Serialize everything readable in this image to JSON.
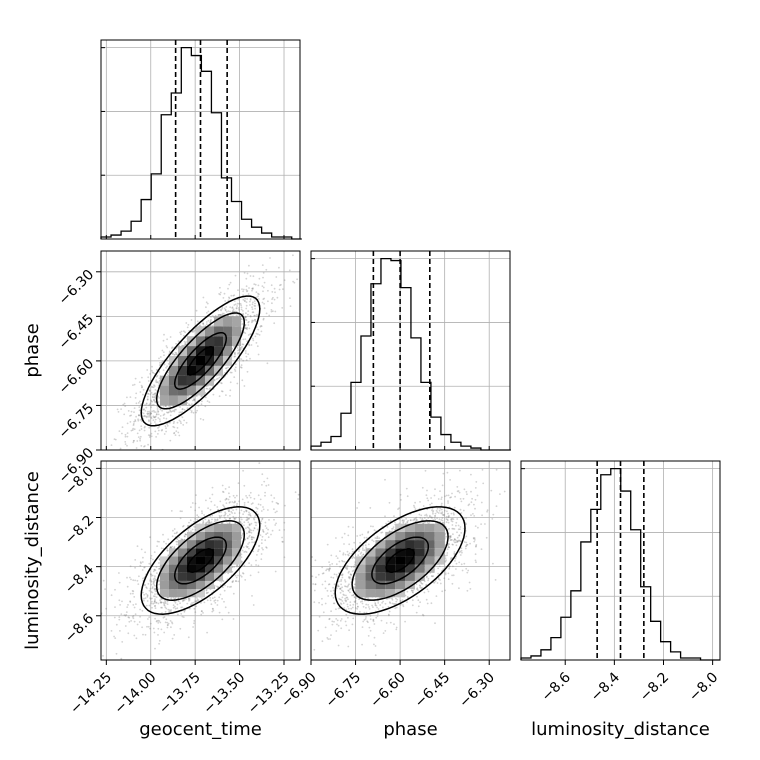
{
  "chart_data": {
    "type": "corner",
    "parameters": [
      "geocent_time",
      "phase",
      "luminosity_distance"
    ],
    "axis_labels": {
      "x": [
        "geocent_time",
        "phase",
        "luminosity_distance"
      ],
      "y": [
        "phase",
        "luminosity_distance"
      ]
    },
    "ranges": {
      "geocent_time": [
        -14.28,
        -13.16
      ],
      "phase": [
        -6.9,
        -6.23
      ],
      "luminosity_distance": [
        -8.78,
        -7.97
      ]
    },
    "ticks": {
      "geocent_time": {
        "values": [
          -14.25,
          -14.0,
          -13.75,
          -13.5,
          -13.25
        ],
        "labels": [
          "−14.25",
          "−14.00",
          "−13.75",
          "−13.50",
          "−13.25"
        ]
      },
      "phase": {
        "values": [
          -6.9,
          -6.75,
          -6.6,
          -6.45,
          -6.3
        ],
        "labels": [
          "−6.90",
          "−6.75",
          "−6.60",
          "−6.45",
          "−6.30"
        ]
      },
      "luminosity_distance": {
        "values": [
          -8.6,
          -8.4,
          -8.2,
          -8.0
        ],
        "labels": [
          "−8.6",
          "−8.4",
          "−8.2",
          "−8.0"
        ]
      }
    },
    "quantiles": {
      "geocent_time": [
        -13.86,
        -13.72,
        -13.57
      ],
      "phase": [
        -6.69,
        -6.6,
        -6.5
      ],
      "luminosity_distance": [
        -8.47,
        -8.375,
        -8.28
      ]
    },
    "histograms": {
      "geocent_time": {
        "edges_start": -14.28,
        "bin_width": 0.0565,
        "counts": [
          1,
          2,
          4,
          9,
          20,
          33,
          63,
          74,
          97,
          93,
          85,
          64,
          31,
          19,
          10,
          6,
          3,
          1,
          1,
          0
        ]
      },
      "phase": {
        "edges_start": -6.9,
        "bin_width": 0.03365,
        "counts": [
          2,
          4,
          7,
          19,
          35,
          59,
          86,
          99,
          98,
          84,
          58,
          35,
          17,
          8,
          4,
          2,
          1,
          0,
          0,
          0
        ]
      },
      "luminosity_distance": {
        "edges_start": -8.78,
        "bin_width": 0.0406,
        "counts": [
          1,
          2,
          5,
          11,
          21,
          34,
          58,
          74,
          91,
          94,
          83,
          64,
          36,
          19,
          9,
          4,
          1,
          1,
          0,
          0
        ]
      }
    },
    "correlations": {
      "phase_vs_geocent_time": 0.8,
      "luminosity_distance_vs_geocent_time": 0.65,
      "luminosity_distance_vs_phase": 0.6
    },
    "grid": true,
    "colors": {
      "line": "#000000",
      "grid": "#b0b0b0",
      "scatter": "#808080"
    }
  }
}
